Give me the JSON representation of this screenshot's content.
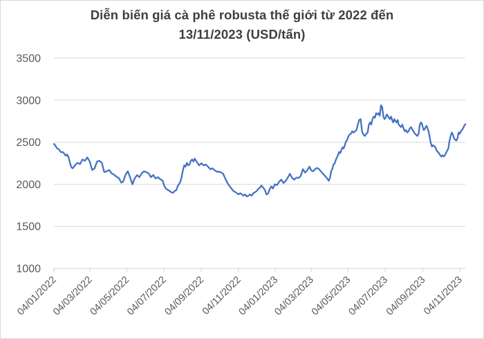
{
  "title": {
    "line1": "Diễn biến giá cà phê robusta thế giới từ 2022 đến",
    "line2": "13/11/2023 (USD/tấn)"
  },
  "chart_data": {
    "type": "line",
    "title": "Diễn biến giá cà phê robusta thế giới từ 2022 đến 13/11/2023 (USD/tấn)",
    "xlabel": "",
    "ylabel": "",
    "ylim": [
      1000,
      3500
    ],
    "y_ticks": [
      3500,
      3000,
      2500,
      2000,
      1500,
      1000
    ],
    "x_unit": "days since 04/01/2022",
    "end_day": 678,
    "grid": true,
    "legend": "none",
    "x_ticks": [
      {
        "label": "04/01/2022",
        "day": 0
      },
      {
        "label": "04/03/2022",
        "day": 59
      },
      {
        "label": "04/05/2022",
        "day": 120
      },
      {
        "label": "04/07/2022",
        "day": 181
      },
      {
        "label": "04/09/2022",
        "day": 243
      },
      {
        "label": "04/11/2022",
        "day": 304
      },
      {
        "label": "04/01/2023",
        "day": 365
      },
      {
        "label": "04/03/2023",
        "day": 424
      },
      {
        "label": "04/05/2023",
        "day": 485
      },
      {
        "label": "04/07/2023",
        "day": 546
      },
      {
        "label": "04/09/2023",
        "day": 608
      },
      {
        "label": "04/11/2023",
        "day": 669
      }
    ],
    "series": [
      {
        "name": "robusta-price",
        "segments": [
          {
            "d0": 0,
            "d1": 29,
            "v": [
              2480,
              2460,
              2430,
              2420,
              2400,
              2380,
              2385,
              2365,
              2340,
              2355,
              2320,
              2250,
              2200
            ]
          },
          {
            "d0": 31,
            "d1": 111,
            "v": [
              2190,
              2230,
              2255,
              2240,
              2295,
              2280,
              2320,
              2270,
              2170,
              2190,
              2270,
              2280,
              2255,
              2145,
              2155,
              2170,
              2130,
              2115,
              2090,
              2075,
              2020
            ]
          },
          {
            "d0": 114,
            "d1": 179,
            "v": [
              2030,
              2110,
              2155,
              2085,
              2000,
              2070,
              2110,
              2085,
              2130,
              2155,
              2145,
              2130,
              2085,
              2110,
              2070,
              2085,
              2060,
              2045
            ]
          },
          {
            "d0": 182,
            "d1": 202,
            "v": [
              1980,
              1945,
              1935,
              1920,
              1905,
              1900,
              1920,
              1935
            ]
          },
          {
            "d0": 204,
            "d1": 230,
            "v": [
              1980,
              2000,
              2030,
              2085,
              2170,
              2225,
              2210,
              2255,
              2225,
              2235,
              2280,
              2295,
              2270
            ]
          },
          {
            "d0": 232,
            "d1": 276,
            "v": [
              2305,
              2265,
              2225,
              2250,
              2225,
              2235,
              2210,
              2180,
              2190,
              2165,
              2150,
              2150,
              2140
            ]
          },
          {
            "d0": 279,
            "d1": 304,
            "v": [
              2125,
              2055,
              2000,
              1960,
              1920,
              1905,
              1880
            ]
          },
          {
            "d0": 307,
            "d1": 361,
            "v": [
              1895,
              1880,
              1865,
              1880,
              1855,
              1865,
              1880,
              1865,
              1895,
              1905,
              1920,
              1945,
              1960,
              1985,
              1960,
              1935,
              1880,
              1890,
              1945,
              1975,
              1950
            ]
          },
          {
            "d0": 364,
            "d1": 421,
            "v": [
              2000,
              1990,
              2030,
              2055,
              2015,
              2040,
              2080,
              2125,
              2075,
              2055,
              2080,
              2075,
              2100,
              2180,
              2140,
              2165,
              2210
            ]
          },
          {
            "d0": 424,
            "d1": 453,
            "v": [
              2165,
              2155,
              2180,
              2195,
              2180,
              2155,
              2125,
              2100,
              2075,
              2040
            ]
          },
          {
            "d0": 455,
            "d1": 485,
            "v": [
              2080,
              2155,
              2180,
              2235,
              2245,
              2285,
              2320,
              2345,
              2385,
              2370,
              2410,
              2440,
              2425,
              2465,
              2510,
              2525,
              2565
            ]
          },
          {
            "d0": 487,
            "d1": 517,
            "v": [
              2590,
              2600,
              2630,
              2615,
              2630,
              2645,
              2710,
              2765,
              2775,
              2630,
              2590,
              2575,
              2600,
              2615
            ]
          },
          {
            "d0": 519,
            "d1": 541,
            "v": [
              2710,
              2735,
              2710,
              2775,
              2805,
              2790,
              2845,
              2830,
              2845,
              2815,
              2940,
              2915
            ]
          },
          {
            "d0": 543,
            "d1": 570,
            "v": [
              2805,
              2775,
              2790,
              2830,
              2815,
              2790,
              2775,
              2805,
              2765,
              2735,
              2775,
              2750,
              2735,
              2765,
              2710,
              2695
            ]
          },
          {
            "d0": 572,
            "d1": 601,
            "v": [
              2680,
              2710,
              2665,
              2630,
              2645,
              2615,
              2630,
              2665,
              2680,
              2650,
              2630,
              2600,
              2590,
              2575,
              2600
            ]
          },
          {
            "d0": 603,
            "d1": 619,
            "v": [
              2710,
              2735,
              2725,
              2680,
              2645,
              2655,
              2680,
              2695,
              2665,
              2630,
              2575
            ]
          },
          {
            "d0": 621,
            "d1": 650,
            "v": [
              2490,
              2450,
              2465,
              2450,
              2440,
              2400,
              2385,
              2370,
              2345,
              2330,
              2345,
              2330,
              2345,
              2370,
              2400,
              2425
            ]
          },
          {
            "d0": 652,
            "d1": 678,
            "v": [
              2520,
              2575,
              2615,
              2590,
              2545,
              2530,
              2520,
              2545,
              2615,
              2600,
              2630,
              2645,
              2665,
              2695,
              2715
            ]
          }
        ]
      }
    ],
    "colors": {
      "line": "#4472C4",
      "grid": "#D9D9D9",
      "axis_line": "#D0D0D0",
      "axis_text": "#595959",
      "title_text": "#3F3F3F"
    }
  }
}
